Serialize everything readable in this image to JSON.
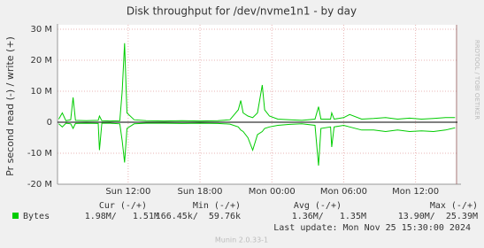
{
  "chart_data": {
    "type": "line",
    "title": "Disk throughput for /dev/nvme1n1 - by day",
    "y_label": "Pr second read (-) / write (+)",
    "side_label": "RRDTOOL / TOBI OETIKER",
    "x": [
      6.2,
      6.5,
      6.8,
      7.2,
      7.4,
      7.6,
      8.5,
      9.5,
      9.6,
      9.8,
      10.5,
      11.3,
      11.5,
      11.7,
      11.9,
      12.5,
      13.5,
      15,
      16.5,
      18,
      19.5,
      20.5,
      21.2,
      21.4,
      21.6,
      22.0,
      22.4,
      22.8,
      23.2,
      23.4,
      23.8,
      24.5,
      25.5,
      26.5,
      27.6,
      27.9,
      28.1,
      28.9,
      29.0,
      29.2,
      30,
      30.5,
      31.5,
      32.5,
      33.5,
      34.5,
      35.5,
      36.5,
      37.5,
      38.5,
      39.3
    ],
    "series": [
      {
        "color": "#00cc00",
        "values": [
          1.0,
          3.0,
          0.5,
          0.8,
          8.0,
          0.6,
          0.5,
          0.6,
          2.0,
          0.5,
          0.4,
          0.5,
          10.0,
          25.5,
          3.0,
          0.8,
          0.5,
          0.4,
          0.5,
          0.4,
          0.5,
          0.8,
          4.0,
          7.0,
          3.0,
          2.0,
          1.5,
          3.0,
          12.0,
          4.0,
          2.0,
          1.0,
          0.8,
          0.6,
          1.0,
          5.0,
          1.0,
          1.0,
          3.0,
          1.0,
          1.5,
          2.5,
          1.0,
          1.2,
          1.5,
          1.0,
          1.3,
          1.0,
          1.2,
          1.5,
          1.5
        ]
      },
      {
        "color": "#00cc00",
        "values": [
          -0.5,
          -1.5,
          -0.3,
          -0.5,
          -2.0,
          -0.4,
          -0.3,
          -0.4,
          -9.0,
          -0.3,
          -0.3,
          -0.5,
          -6.0,
          -13.0,
          -2.0,
          -0.5,
          -0.3,
          -0.3,
          -0.4,
          -0.3,
          -0.4,
          -0.6,
          -1.5,
          -2.5,
          -3.0,
          -5.0,
          -9.0,
          -4.0,
          -3.0,
          -2.0,
          -1.5,
          -1.0,
          -0.7,
          -0.5,
          -1.0,
          -14.0,
          -2.0,
          -1.5,
          -8.0,
          -1.5,
          -1.0,
          -1.5,
          -2.5,
          -2.5,
          -3.0,
          -2.5,
          -3.0,
          -2.8,
          -3.0,
          -2.5,
          -1.8
        ]
      }
    ],
    "xlim": [
      6.1,
      39.5
    ],
    "xticks": [
      {
        "value": 12,
        "label": "Sun 12:00"
      },
      {
        "value": 18,
        "label": "Sun 18:00"
      },
      {
        "value": 24,
        "label": "Mon 00:00"
      },
      {
        "value": 30,
        "label": "Mon 06:00"
      },
      {
        "value": 36,
        "label": "Mon 12:00"
      }
    ],
    "ylim": [
      -20,
      30
    ],
    "yticks": [
      {
        "value": -20,
        "label": "-20 M"
      },
      {
        "value": -10,
        "label": "-10 M"
      },
      0,
      {
        "value": 10,
        "label": "10 M"
      },
      {
        "value": 20,
        "label": "20 M"
      },
      {
        "value": 30,
        "label": "30 M"
      }
    ],
    "grid": true,
    "summary": {
      "headers": [
        "Cur (-/+)",
        "Min (-/+)",
        "Avg (-/+)",
        "Max (-/+)"
      ],
      "row_name": "Bytes",
      "row_color": "#00cc00",
      "cells": [
        "1.98M/   1.51M",
        "166.45k/  59.76k",
        "1.36M/   1.35M",
        "13.90M/  25.39M"
      ]
    },
    "last_update": "Last update: Mon Nov 25 15:30:00 2024",
    "footer": "Munin 2.0.33-1"
  }
}
